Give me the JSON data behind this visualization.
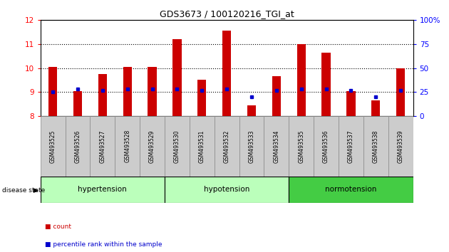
{
  "title": "GDS3673 / 100120216_TGI_at",
  "samples": [
    "GSM493525",
    "GSM493526",
    "GSM493527",
    "GSM493528",
    "GSM493529",
    "GSM493530",
    "GSM493531",
    "GSM493532",
    "GSM493533",
    "GSM493534",
    "GSM493535",
    "GSM493536",
    "GSM493537",
    "GSM493538",
    "GSM493539"
  ],
  "count_values": [
    10.05,
    9.05,
    9.75,
    10.05,
    10.05,
    11.2,
    9.5,
    11.55,
    8.45,
    9.65,
    11.0,
    10.65,
    9.05,
    8.65,
    10.0
  ],
  "percentile_values": [
    25,
    28,
    27,
    28,
    28,
    28,
    27,
    28,
    20,
    27,
    28,
    28,
    27,
    20,
    27
  ],
  "ylim_left": [
    8,
    12
  ],
  "ylim_right": [
    0,
    100
  ],
  "yticks_left": [
    8,
    9,
    10,
    11,
    12
  ],
  "yticks_right": [
    0,
    25,
    50,
    75,
    100
  ],
  "bar_color": "#CC0000",
  "marker_color": "#0000CC",
  "group_defs": [
    {
      "label": "hypertension",
      "start": 0,
      "end": 5,
      "color": "#BBFFBB"
    },
    {
      "label": "hypotension",
      "start": 5,
      "end": 10,
      "color": "#BBFFBB"
    },
    {
      "label": "normotension",
      "start": 10,
      "end": 15,
      "color": "#44CC44"
    }
  ],
  "legend_count_color": "#CC0000",
  "legend_pct_color": "#0000CC",
  "tick_label_bg": "#CCCCCC"
}
